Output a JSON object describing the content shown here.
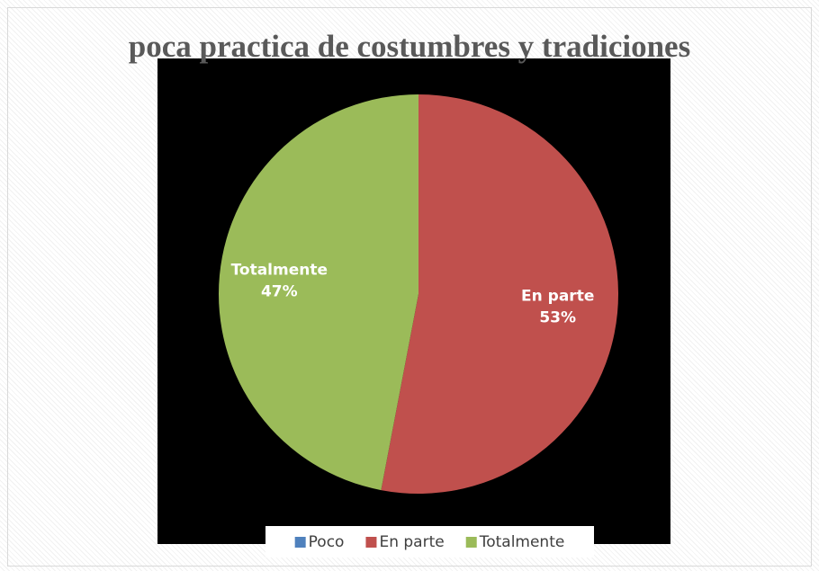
{
  "chart_data": {
    "type": "pie",
    "title": "poca practica de costumbres y tradiciones",
    "categories": [
      "Poco",
      "En parte",
      "Totalmente"
    ],
    "values": [
      0,
      53,
      47
    ],
    "value_labels": [
      null,
      "53%",
      "47%"
    ],
    "colors": [
      "#4f81bd",
      "#c0504d",
      "#9bbb59"
    ],
    "legend": "bottom"
  }
}
